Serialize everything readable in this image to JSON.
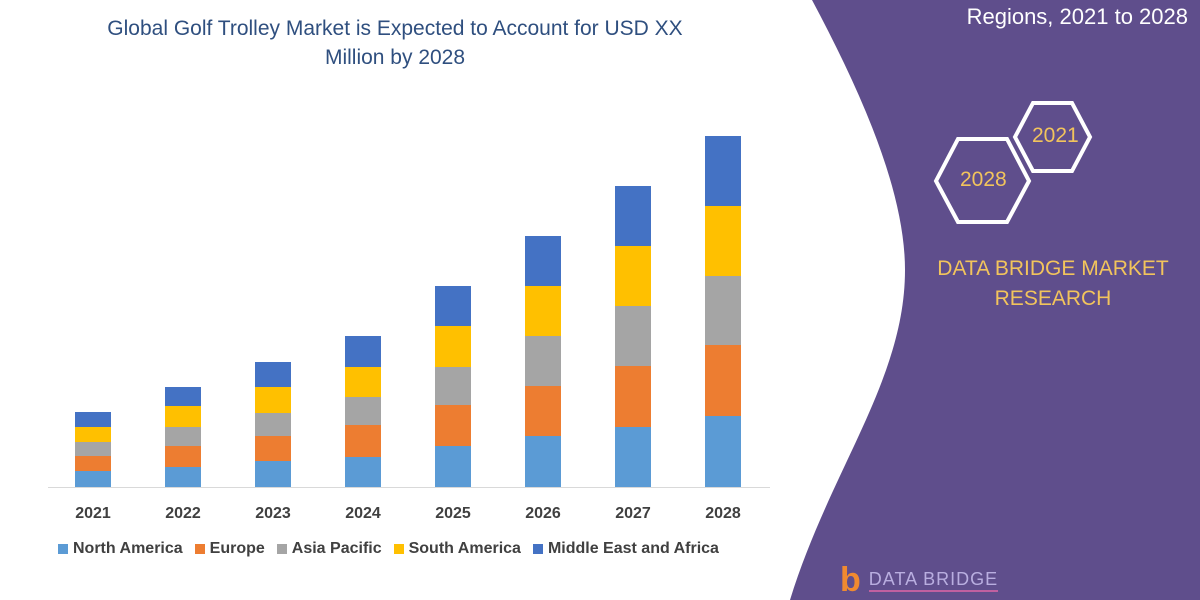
{
  "header": {
    "title_line1": "Global Golf Trolley Market is Expected to Account for USD XX",
    "title_line2": "Million by 2028"
  },
  "side_panel": {
    "title_visible_line": "Regions, 2021 to 2028",
    "hex_start": "2021",
    "hex_end": "2028",
    "brand_line1": "DATA BRIDGE MARKET",
    "brand_line2": "RESEARCH",
    "logo_text": "DATA BRIDGE",
    "background_color": "#5f4e8c",
    "text_color": "#f2c45c"
  },
  "chart_data": {
    "type": "bar",
    "stacked": true,
    "title": "Global Golf Trolley Market is Expected to Account for USD XX Million by 2028",
    "xlabel": "",
    "ylabel": "",
    "grid": false,
    "legend_position": "bottom",
    "categories": [
      "2021",
      "2022",
      "2023",
      "2024",
      "2025",
      "2026",
      "2027",
      "2028"
    ],
    "series": [
      {
        "name": "North America",
        "color": "#5b9bd5",
        "values": [
          16,
          20,
          26,
          30,
          41,
          51,
          60,
          71
        ]
      },
      {
        "name": "Europe",
        "color": "#ed7d31",
        "values": [
          15,
          21,
          25,
          32,
          41,
          50,
          61,
          71
        ]
      },
      {
        "name": "Asia Pacific",
        "color": "#a5a5a5",
        "values": [
          14,
          19,
          23,
          28,
          38,
          50,
          60,
          69
        ]
      },
      {
        "name": "South America",
        "color": "#ffc000",
        "values": [
          15,
          21,
          26,
          30,
          41,
          50,
          60,
          70
        ]
      },
      {
        "name": "Middle East and Africa",
        "color": "#4472c4",
        "values": [
          15,
          19,
          25,
          31,
          40,
          50,
          60,
          70
        ]
      }
    ]
  }
}
